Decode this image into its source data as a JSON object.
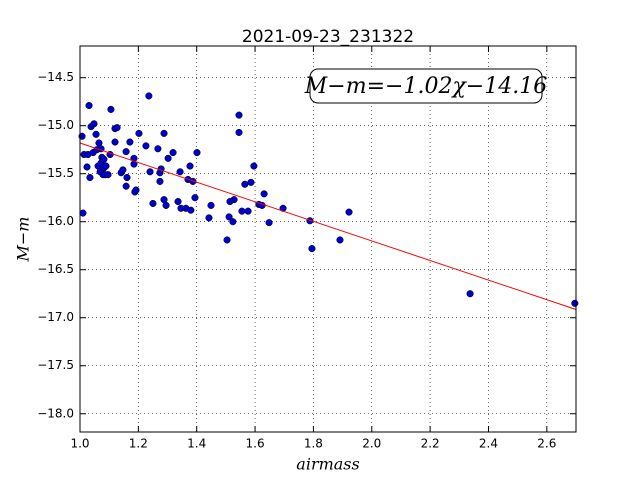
{
  "chart_data": {
    "type": "scatter",
    "title": "2021-09-23_231322",
    "xlabel": "airmass",
    "ylabel": "M−m",
    "annotation": "M−m=−1.02χ−14.16",
    "grid": true,
    "xlim": [
      1.0,
      2.7
    ],
    "ylim": [
      -18.19,
      -14.17
    ],
    "xticks": [
      {
        "value": 1.0,
        "label": "1.0"
      },
      1.2,
      1.4,
      1.6,
      1.8,
      {
        "value": 2.0,
        "label": "2.0"
      },
      2.2,
      2.4,
      2.6
    ],
    "yticks": [
      {
        "value": -14.5,
        "label": "−14.5"
      },
      {
        "value": -15.0,
        "label": "−15.0"
      },
      {
        "value": -15.5,
        "label": "−15.5"
      },
      {
        "value": -16.0,
        "label": "−16.0"
      },
      {
        "value": -16.5,
        "label": "−16.5"
      },
      {
        "value": -17.0,
        "label": "−17.0"
      },
      {
        "value": -17.5,
        "label": "−17.5"
      },
      {
        "value": -18.0,
        "label": "−18.0"
      }
    ],
    "series": [
      {
        "type": "scatter",
        "color": "#0000cc",
        "x": [
          1.007,
          1.01,
          1.014,
          1.024,
          1.027,
          1.031,
          1.034,
          1.038,
          1.045,
          1.048,
          1.055,
          1.058,
          1.062,
          1.065,
          1.069,
          1.072,
          1.072,
          1.075,
          1.079,
          1.082,
          1.082,
          1.086,
          1.089,
          1.096,
          1.103,
          1.106,
          1.12,
          1.127,
          1.12,
          1.141,
          1.147,
          1.158,
          1.161,
          1.158,
          1.171,
          1.185,
          1.185,
          1.188,
          1.192,
          1.202,
          1.226,
          1.236,
          1.24,
          1.25,
          1.267,
          1.274,
          1.274,
          1.278,
          1.288,
          1.288,
          1.295,
          1.302,
          1.319,
          1.336,
          1.343,
          1.346,
          1.363,
          1.37,
          1.377,
          1.38,
          1.387,
          1.394,
          1.401,
          1.442,
          1.449,
          1.504,
          1.511,
          1.514,
          1.524,
          1.528,
          1.545,
          1.545,
          1.555,
          1.565,
          1.576,
          1.586,
          1.596,
          1.613,
          1.624,
          1.631,
          1.648,
          1.696,
          1.788,
          1.795,
          1.891,
          1.922,
          2.337,
          2.696
        ],
        "values": [
          -15.11,
          -15.91,
          -15.3,
          -15.43,
          -15.3,
          -14.79,
          -15.54,
          -15.01,
          -15.28,
          -14.98,
          -15.09,
          -15.25,
          -15.42,
          -15.18,
          -15.48,
          -15.39,
          -15.24,
          -15.33,
          -15.51,
          -15.35,
          -15.44,
          -15.51,
          -15.42,
          -15.51,
          -15.3,
          -14.83,
          -15.03,
          -15.02,
          -15.17,
          -15.49,
          -15.46,
          -15.27,
          -15.54,
          -15.63,
          -15.17,
          -15.34,
          -15.4,
          -15.69,
          -15.67,
          -15.08,
          -15.21,
          -14.69,
          -15.48,
          -15.81,
          -15.24,
          -15.49,
          -15.58,
          -15.45,
          -15.77,
          -15.08,
          -15.83,
          -15.34,
          -15.28,
          -15.79,
          -15.48,
          -15.86,
          -15.86,
          -15.56,
          -15.42,
          -15.88,
          -15.58,
          -15.75,
          -15.28,
          -15.96,
          -15.83,
          -16.19,
          -15.95,
          -15.79,
          -16.0,
          -15.77,
          -14.89,
          -15.07,
          -15.89,
          -15.61,
          -15.89,
          -15.59,
          -15.42,
          -15.82,
          -15.83,
          -15.71,
          -16.01,
          -15.86,
          -15.99,
          -16.28,
          -16.19,
          -15.9,
          -16.75,
          -16.85
        ]
      },
      {
        "type": "line",
        "color": "#ff0000",
        "x": [
          1.0,
          2.7
        ],
        "values": [
          -15.18,
          -16.914
        ]
      }
    ]
  }
}
